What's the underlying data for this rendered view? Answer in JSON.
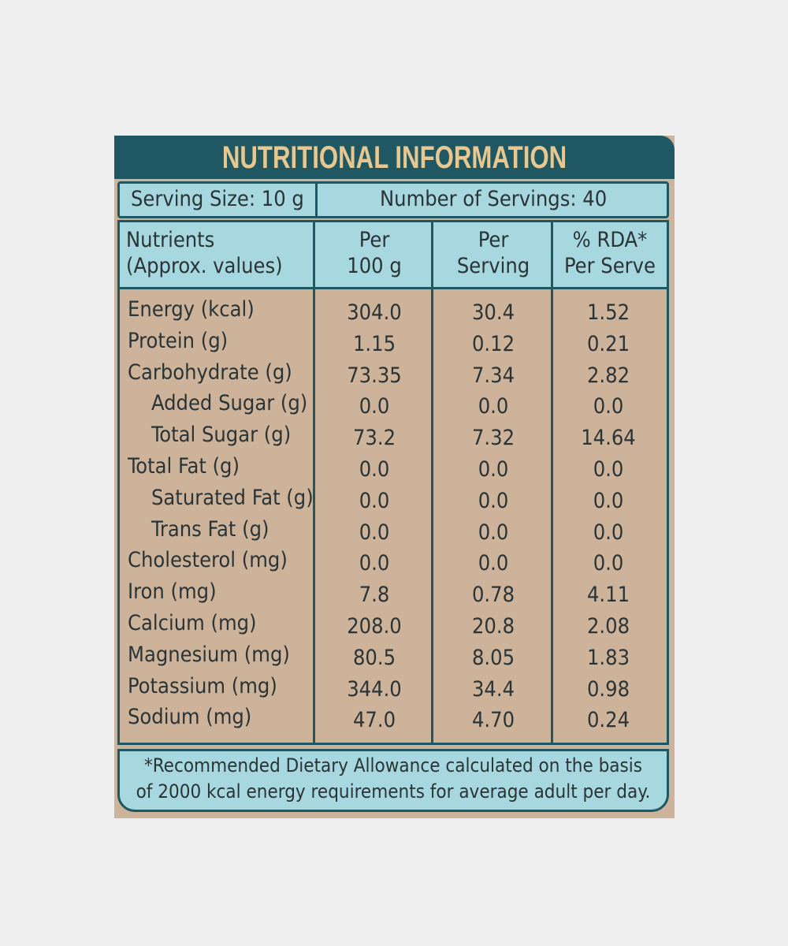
{
  "title": "NUTRITIONAL INFORMATION",
  "serving_size": "Serving Size: 10 g",
  "servings_count": "Number of Servings: 40",
  "headers": {
    "nutrients": "Nutrients",
    "nutrients_sub": "(Approx. values)",
    "per100_a": "Per",
    "per100_b": "100 g",
    "perserv_a": "Per",
    "perserv_b": "Serving",
    "rda_a": "% RDA*",
    "rda_b": "Per Serve"
  },
  "rows": [
    {
      "name": "Energy (kcal)",
      "indent": false,
      "per100": "304.0",
      "serving": "30.4",
      "rda": "1.52"
    },
    {
      "name": "Protein (g)",
      "indent": false,
      "per100": "1.15",
      "serving": "0.12",
      "rda": "0.21"
    },
    {
      "name": "Carbohydrate (g)",
      "indent": false,
      "per100": "73.35",
      "serving": "7.34",
      "rda": "2.82"
    },
    {
      "name": "Added Sugar (g)",
      "indent": true,
      "per100": "0.0",
      "serving": "0.0",
      "rda": "0.0"
    },
    {
      "name": "Total Sugar (g)",
      "indent": true,
      "per100": "73.2",
      "serving": "7.32",
      "rda": "14.64"
    },
    {
      "name": "Total Fat (g)",
      "indent": false,
      "per100": "0.0",
      "serving": "0.0",
      "rda": "0.0"
    },
    {
      "name": "Saturated Fat (g)",
      "indent": true,
      "per100": "0.0",
      "serving": "0.0",
      "rda": "0.0"
    },
    {
      "name": "Trans Fat (g)",
      "indent": true,
      "per100": "0.0",
      "serving": "0.0",
      "rda": "0.0"
    },
    {
      "name": "Cholesterol (mg)",
      "indent": false,
      "per100": "0.0",
      "serving": "0.0",
      "rda": "0.0"
    },
    {
      "name": "Iron (mg)",
      "indent": false,
      "per100": "7.8",
      "serving": "0.78",
      "rda": "4.11"
    },
    {
      "name": "Calcium (mg)",
      "indent": false,
      "per100": "208.0",
      "serving": "20.8",
      "rda": "2.08"
    },
    {
      "name": "Magnesium (mg)",
      "indent": false,
      "per100": "80.5",
      "serving": "8.05",
      "rda": "1.83"
    },
    {
      "name": "Potassium (mg)",
      "indent": false,
      "per100": "344.0",
      "serving": "34.4",
      "rda": "0.98"
    },
    {
      "name": "Sodium (mg)",
      "indent": false,
      "per100": "47.0",
      "serving": "4.70",
      "rda": "0.24"
    }
  ],
  "footnote_line1": "*Recommended Dietary Allowance calculated on the basis",
  "footnote_line2": "of 2000 kcal energy requirements for average adult per day.",
  "colors": {
    "panel": "#cdb39a",
    "banner": "#1f5862",
    "title": "#e8c890",
    "header_bg": "#a7d7df",
    "text": "#2a3436"
  }
}
